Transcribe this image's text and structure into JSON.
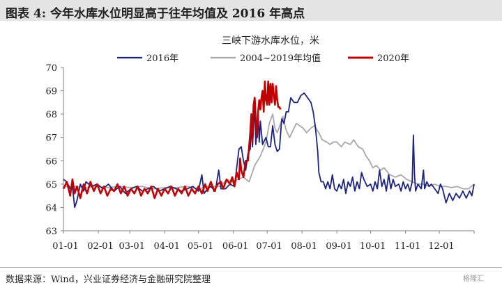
{
  "header": {
    "title": "图表 4:  今年水库水位明显高于往年均值及 2016 年高点"
  },
  "footer": {
    "source": "数据来源：Wind，兴业证券经济与金融研究院整理",
    "watermark": "格隆汇"
  },
  "chart_data": {
    "type": "line",
    "title": "三峡下游水库水位，米",
    "xlabel": "",
    "ylabel": "",
    "ylim": [
      63,
      70
    ],
    "xlim": [
      0,
      365
    ],
    "yticks": [
      63,
      64,
      65,
      66,
      67,
      68,
      69,
      70
    ],
    "xticks": [
      {
        "label": "01-01",
        "day": 0
      },
      {
        "label": "02-01",
        "day": 31
      },
      {
        "label": "03-01",
        "day": 59
      },
      {
        "label": "04-01",
        "day": 90
      },
      {
        "label": "05-01",
        "day": 120
      },
      {
        "label": "06-01",
        "day": 151
      },
      {
        "label": "07-01",
        "day": 181
      },
      {
        "label": "08-01",
        "day": 212
      },
      {
        "label": "09-01",
        "day": 243
      },
      {
        "label": "10-01",
        "day": 273
      },
      {
        "label": "11-01",
        "day": 304
      },
      {
        "label": "12-01",
        "day": 334
      }
    ],
    "legend_position": "top",
    "grid": false,
    "series": [
      {
        "name": "2016年",
        "color": "#1a237e",
        "points": [
          [
            0,
            65.2
          ],
          [
            3,
            65.1
          ],
          [
            6,
            64.8
          ],
          [
            8,
            64.9
          ],
          [
            10,
            64.0
          ],
          [
            12,
            64.3
          ],
          [
            15,
            65.0
          ],
          [
            18,
            64.7
          ],
          [
            20,
            65.1
          ],
          [
            25,
            64.9
          ],
          [
            30,
            65.0
          ],
          [
            35,
            64.8
          ],
          [
            40,
            65.0
          ],
          [
            45,
            64.7
          ],
          [
            50,
            64.9
          ],
          [
            55,
            64.6
          ],
          [
            60,
            64.8
          ],
          [
            65,
            64.9
          ],
          [
            70,
            64.7
          ],
          [
            75,
            64.8
          ],
          [
            80,
            64.9
          ],
          [
            85,
            64.7
          ],
          [
            90,
            64.8
          ],
          [
            95,
            64.9
          ],
          [
            100,
            64.8
          ],
          [
            105,
            64.7
          ],
          [
            110,
            64.8
          ],
          [
            115,
            64.9
          ],
          [
            120,
            64.7
          ],
          [
            123,
            65.4
          ],
          [
            125,
            64.6
          ],
          [
            128,
            64.8
          ],
          [
            131,
            64.9
          ],
          [
            135,
            64.7
          ],
          [
            138,
            65.6
          ],
          [
            140,
            64.8
          ],
          [
            144,
            64.8
          ],
          [
            148,
            65.0
          ],
          [
            152,
            64.9
          ],
          [
            154,
            65.7
          ],
          [
            156,
            66.5
          ],
          [
            158,
            66.6
          ],
          [
            160,
            66.0
          ],
          [
            162,
            65.6
          ],
          [
            164,
            66.3
          ],
          [
            166,
            66.5
          ],
          [
            167,
            67.6
          ],
          [
            168,
            66.6
          ],
          [
            170,
            68.4
          ],
          [
            171,
            66.7
          ],
          [
            173,
            68.0
          ],
          [
            174,
            66.8
          ],
          [
            175,
            67.7
          ],
          [
            177,
            66.7
          ],
          [
            180,
            67.0
          ],
          [
            182,
            66.6
          ],
          [
            184,
            66.6
          ],
          [
            186,
            67.5
          ],
          [
            188,
            66.7
          ],
          [
            190,
            66.4
          ],
          [
            192,
            66.5
          ],
          [
            194,
            67.8
          ],
          [
            196,
            67.6
          ],
          [
            198,
            68.1
          ],
          [
            200,
            68.1
          ],
          [
            202,
            68.7
          ],
          [
            205,
            68.5
          ],
          [
            208,
            68.5
          ],
          [
            211,
            68.8
          ],
          [
            214,
            68.9
          ],
          [
            217,
            68.7
          ],
          [
            220,
            68.5
          ],
          [
            222,
            68.1
          ],
          [
            224,
            67.4
          ],
          [
            226,
            66.4
          ],
          [
            227,
            65.5
          ],
          [
            229,
            65.1
          ],
          [
            231,
            65.1
          ],
          [
            233,
            64.8
          ],
          [
            235,
            65.1
          ],
          [
            237,
            64.8
          ],
          [
            239,
            65.4
          ],
          [
            241,
            64.8
          ],
          [
            243,
            64.7
          ],
          [
            245,
            65.0
          ],
          [
            247,
            64.8
          ],
          [
            249,
            65.2
          ],
          [
            251,
            64.6
          ],
          [
            253,
            65.1
          ],
          [
            255,
            64.9
          ],
          [
            257,
            65.3
          ],
          [
            259,
            64.7
          ],
          [
            261,
            65.1
          ],
          [
            263,
            64.8
          ],
          [
            265,
            65.5
          ],
          [
            267,
            65.2
          ],
          [
            270,
            64.9
          ],
          [
            273,
            65.0
          ],
          [
            275,
            64.7
          ],
          [
            277,
            65.1
          ],
          [
            279,
            64.8
          ],
          [
            281,
            65.6
          ],
          [
            283,
            64.9
          ],
          [
            285,
            65.2
          ],
          [
            287,
            64.7
          ],
          [
            289,
            65.4
          ],
          [
            291,
            64.8
          ],
          [
            293,
            65.2
          ],
          [
            295,
            64.9
          ],
          [
            298,
            65.0
          ],
          [
            300,
            64.7
          ],
          [
            302,
            65.1
          ],
          [
            304,
            64.8
          ],
          [
            306,
            65.0
          ],
          [
            308,
            64.7
          ],
          [
            310,
            65.1
          ],
          [
            311,
            67.1
          ],
          [
            312,
            65.4
          ],
          [
            313,
            64.7
          ],
          [
            315,
            65.0
          ],
          [
            318,
            64.8
          ],
          [
            320,
            65.6
          ],
          [
            321,
            64.8
          ],
          [
            323,
            65.1
          ],
          [
            325,
            64.9
          ],
          [
            327,
            65.0
          ],
          [
            330,
            64.8
          ],
          [
            333,
            64.6
          ],
          [
            335,
            65.0
          ],
          [
            337,
            64.8
          ],
          [
            340,
            64.2
          ],
          [
            343,
            64.6
          ],
          [
            346,
            64.3
          ],
          [
            349,
            64.6
          ],
          [
            352,
            64.4
          ],
          [
            355,
            64.7
          ],
          [
            358,
            64.4
          ],
          [
            361,
            64.7
          ],
          [
            363,
            64.5
          ],
          [
            365,
            65.0
          ]
        ]
      },
      {
        "name": "2004~2019年均值",
        "color": "#a8a8a8",
        "points": [
          [
            0,
            64.9
          ],
          [
            10,
            64.9
          ],
          [
            20,
            64.85
          ],
          [
            30,
            64.9
          ],
          [
            40,
            64.85
          ],
          [
            50,
            64.9
          ],
          [
            60,
            64.85
          ],
          [
            70,
            64.9
          ],
          [
            80,
            64.8
          ],
          [
            90,
            64.85
          ],
          [
            100,
            64.85
          ],
          [
            110,
            64.9
          ],
          [
            120,
            64.8
          ],
          [
            130,
            64.9
          ],
          [
            140,
            64.9
          ],
          [
            145,
            65.2
          ],
          [
            150,
            65.1
          ],
          [
            155,
            65.2
          ],
          [
            160,
            65.3
          ],
          [
            165,
            65.1
          ],
          [
            170,
            65.8
          ],
          [
            175,
            66.2
          ],
          [
            180,
            66.8
          ],
          [
            183,
            67.6
          ],
          [
            186,
            68.0
          ],
          [
            188,
            67.4
          ],
          [
            190,
            67.2
          ],
          [
            193,
            67.6
          ],
          [
            195,
            67.9
          ],
          [
            198,
            67.3
          ],
          [
            201,
            67.0
          ],
          [
            204,
            67.3
          ],
          [
            207,
            67.6
          ],
          [
            210,
            67.5
          ],
          [
            213,
            67.4
          ],
          [
            216,
            67.2
          ],
          [
            220,
            67.4
          ],
          [
            223,
            67.5
          ],
          [
            227,
            67.2
          ],
          [
            230,
            66.9
          ],
          [
            234,
            66.8
          ],
          [
            237,
            66.7
          ],
          [
            240,
            66.8
          ],
          [
            243,
            66.8
          ],
          [
            247,
            66.6
          ],
          [
            250,
            66.8
          ],
          [
            255,
            66.7
          ],
          [
            258,
            66.9
          ],
          [
            262,
            66.6
          ],
          [
            266,
            66.5
          ],
          [
            269,
            66.2
          ],
          [
            272,
            66.0
          ],
          [
            275,
            65.7
          ],
          [
            278,
            65.8
          ],
          [
            282,
            65.6
          ],
          [
            285,
            65.7
          ],
          [
            290,
            65.4
          ],
          [
            295,
            65.3
          ],
          [
            300,
            65.4
          ],
          [
            305,
            65.2
          ],
          [
            310,
            65.1
          ],
          [
            315,
            65.0
          ],
          [
            320,
            65.0
          ],
          [
            325,
            64.9
          ],
          [
            330,
            65.0
          ],
          [
            335,
            64.9
          ],
          [
            340,
            64.9
          ],
          [
            345,
            64.85
          ],
          [
            350,
            64.9
          ],
          [
            355,
            64.8
          ],
          [
            360,
            64.8
          ],
          [
            365,
            65.0
          ]
        ]
      },
      {
        "name": "2020年",
        "color": "#c00000",
        "points": [
          [
            0,
            64.8
          ],
          [
            3,
            65.1
          ],
          [
            6,
            64.5
          ],
          [
            8,
            65.2
          ],
          [
            10,
            64.6
          ],
          [
            12,
            64.9
          ],
          [
            15,
            64.4
          ],
          [
            18,
            65.0
          ],
          [
            21,
            64.6
          ],
          [
            24,
            65.1
          ],
          [
            27,
            64.7
          ],
          [
            30,
            65.0
          ],
          [
            33,
            64.6
          ],
          [
            36,
            64.9
          ],
          [
            39,
            64.5
          ],
          [
            42,
            64.8
          ],
          [
            45,
            64.7
          ],
          [
            48,
            65.0
          ],
          [
            51,
            64.6
          ],
          [
            54,
            64.9
          ],
          [
            57,
            64.5
          ],
          [
            60,
            64.8
          ],
          [
            63,
            64.6
          ],
          [
            66,
            64.9
          ],
          [
            69,
            64.5
          ],
          [
            72,
            64.8
          ],
          [
            75,
            64.6
          ],
          [
            78,
            64.9
          ],
          [
            81,
            64.4
          ],
          [
            84,
            64.8
          ],
          [
            87,
            64.5
          ],
          [
            90,
            64.8
          ],
          [
            93,
            64.6
          ],
          [
            96,
            64.9
          ],
          [
            99,
            64.5
          ],
          [
            102,
            64.8
          ],
          [
            105,
            64.6
          ],
          [
            108,
            64.9
          ],
          [
            111,
            64.5
          ],
          [
            114,
            64.8
          ],
          [
            117,
            64.6
          ],
          [
            120,
            64.9
          ],
          [
            123,
            64.6
          ],
          [
            126,
            65.0
          ],
          [
            128,
            64.7
          ],
          [
            131,
            65.1
          ],
          [
            134,
            64.7
          ],
          [
            137,
            65.0
          ],
          [
            140,
            65.1
          ],
          [
            142,
            64.8
          ],
          [
            145,
            65.2
          ],
          [
            148,
            65.0
          ],
          [
            150,
            65.3
          ],
          [
            152,
            64.9
          ],
          [
            154,
            65.5
          ],
          [
            156,
            65.2
          ],
          [
            157,
            66.1
          ],
          [
            158,
            65.6
          ],
          [
            160,
            65.3
          ],
          [
            162,
            66.0
          ],
          [
            164,
            66.0
          ],
          [
            166,
            67.2
          ],
          [
            167,
            68.0
          ],
          [
            168,
            66.8
          ],
          [
            169,
            68.4
          ],
          [
            170,
            68.7
          ],
          [
            171,
            67.8
          ],
          [
            172,
            67.0
          ],
          [
            173,
            68.1
          ],
          [
            174,
            68.6
          ],
          [
            175,
            68.2
          ],
          [
            176,
            68.7
          ],
          [
            177,
            69.0
          ],
          [
            178,
            68.1
          ],
          [
            179,
            69.4
          ],
          [
            180,
            68.6
          ],
          [
            181,
            68.4
          ],
          [
            182,
            69.4
          ],
          [
            183,
            68.4
          ],
          [
            184,
            69.3
          ],
          [
            185,
            68.5
          ],
          [
            186,
            69.3
          ],
          [
            187,
            68.8
          ],
          [
            188,
            68.4
          ],
          [
            189,
            69.2
          ],
          [
            190,
            68.6
          ],
          [
            191,
            68.3
          ],
          [
            192,
            68.3
          ],
          [
            193,
            68.2
          ]
        ]
      }
    ]
  }
}
